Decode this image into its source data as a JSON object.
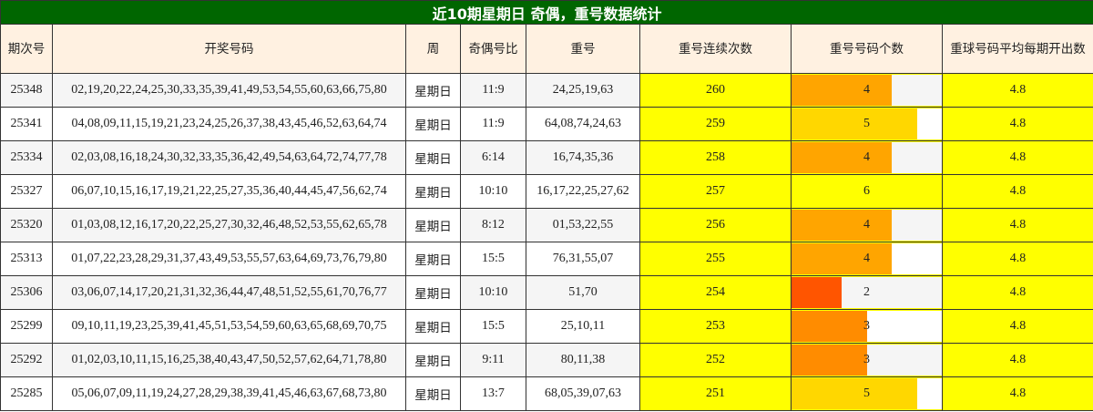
{
  "title": "近10期星期日 奇偶，重号数据统计",
  "headers": [
    "期次号",
    "开奖号码",
    "周",
    "奇偶号比",
    "重号",
    "重号连续次数",
    "重号号码个数",
    "重球号码平均每期开出数"
  ],
  "bar_max": 6,
  "colors": {
    "title_bg": "#006600",
    "header_bg": "#fff1e1",
    "highlight": "#ffff00",
    "bar_6": "#ffff00",
    "bar_5": "#ffd700",
    "bar_4": "#ffa500",
    "bar_3": "#ff8c00",
    "bar_2": "#ff5500"
  },
  "rows": [
    {
      "issue": "25348",
      "numbers": "02,19,20,22,24,25,30,33,35,39,41,49,53,54,55,60,63,66,75,80",
      "weekday": "星期日",
      "odd_even": "11:9",
      "repeat": "24,25,19,63",
      "streak": "260",
      "count": 4,
      "count_label": "4",
      "avg": "4.8"
    },
    {
      "issue": "25341",
      "numbers": "04,08,09,11,15,19,21,23,24,25,26,37,38,43,45,46,52,63,64,74",
      "weekday": "星期日",
      "odd_even": "11:9",
      "repeat": "64,08,74,24,63",
      "streak": "259",
      "count": 5,
      "count_label": "5",
      "avg": "4.8"
    },
    {
      "issue": "25334",
      "numbers": "02,03,08,16,18,24,30,32,33,35,36,42,49,54,63,64,72,74,77,78",
      "weekday": "星期日",
      "odd_even": "6:14",
      "repeat": "16,74,35,36",
      "streak": "258",
      "count": 4,
      "count_label": "4",
      "avg": "4.8"
    },
    {
      "issue": "25327",
      "numbers": "06,07,10,15,16,17,19,21,22,25,27,35,36,40,44,45,47,56,62,74",
      "weekday": "星期日",
      "odd_even": "10:10",
      "repeat": "16,17,22,25,27,62",
      "streak": "257",
      "count": 6,
      "count_label": "6",
      "avg": "4.8"
    },
    {
      "issue": "25320",
      "numbers": "01,03,08,12,16,17,20,22,25,27,30,32,46,48,52,53,55,62,65,78",
      "weekday": "星期日",
      "odd_even": "8:12",
      "repeat": "01,53,22,55",
      "streak": "256",
      "count": 4,
      "count_label": "4",
      "avg": "4.8"
    },
    {
      "issue": "25313",
      "numbers": "01,07,22,23,28,29,31,37,43,49,53,55,57,63,64,69,73,76,79,80",
      "weekday": "星期日",
      "odd_even": "15:5",
      "repeat": "76,31,55,07",
      "streak": "255",
      "count": 4,
      "count_label": "4",
      "avg": "4.8"
    },
    {
      "issue": "25306",
      "numbers": "03,06,07,14,17,20,21,31,32,36,44,47,48,51,52,55,61,70,76,77",
      "weekday": "星期日",
      "odd_even": "10:10",
      "repeat": "51,70",
      "streak": "254",
      "count": 2,
      "count_label": "2",
      "avg": "4.8"
    },
    {
      "issue": "25299",
      "numbers": "09,10,11,19,23,25,39,41,45,51,53,54,59,60,63,65,68,69,70,75",
      "weekday": "星期日",
      "odd_even": "15:5",
      "repeat": "25,10,11",
      "streak": "253",
      "count": 3,
      "count_label": "3",
      "avg": "4.8"
    },
    {
      "issue": "25292",
      "numbers": "01,02,03,10,11,15,16,25,38,40,43,47,50,52,57,62,64,71,78,80",
      "weekday": "星期日",
      "odd_even": "9:11",
      "repeat": "80,11,38",
      "streak": "252",
      "count": 3,
      "count_label": "3",
      "avg": "4.8"
    },
    {
      "issue": "25285",
      "numbers": "05,06,07,09,11,19,24,27,28,29,38,39,41,45,46,63,67,68,73,80",
      "weekday": "星期日",
      "odd_even": "13:7",
      "repeat": "68,05,39,07,63",
      "streak": "251",
      "count": 5,
      "count_label": "5",
      "avg": "4.8"
    }
  ]
}
